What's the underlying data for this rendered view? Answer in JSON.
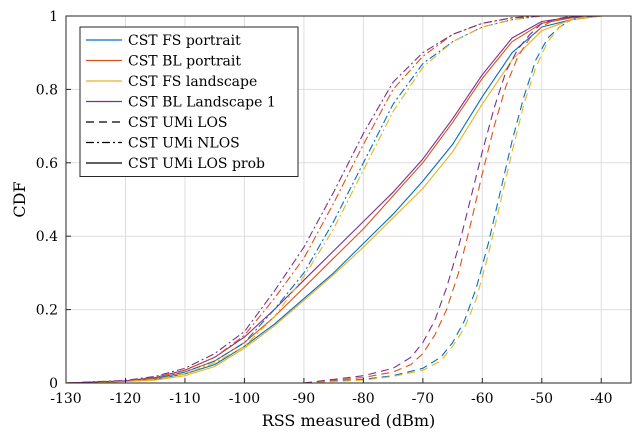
{
  "chart_data": {
    "type": "line",
    "xlabel": "RSS measured (dBm)",
    "ylabel": "CDF",
    "xlim": [
      -130,
      -35
    ],
    "ylim": [
      0,
      1
    ],
    "xticks": [
      -130,
      -120,
      -110,
      -100,
      -90,
      -80,
      -70,
      -60,
      -50,
      -40
    ],
    "yticks": [
      0,
      0.2,
      0.4,
      0.6,
      0.8,
      1
    ],
    "xtick_labels": [
      "-130",
      "-120",
      "-110",
      "-100",
      "-90",
      "-80",
      "-70",
      "-60",
      "-50",
      "-40"
    ],
    "ytick_labels": [
      "0",
      "0.2",
      "0.4",
      "0.6",
      "0.8",
      "1"
    ],
    "grid": true,
    "legend_position": "top-left",
    "legend": [
      {
        "label": "CST FS portrait",
        "color": "#0072bd",
        "dash": "solid"
      },
      {
        "label": "CST BL portrait",
        "color": "#d95319",
        "dash": "solid"
      },
      {
        "label": "CST FS landscape",
        "color": "#edb120",
        "dash": "solid"
      },
      {
        "label": "CST BL Landscape 1",
        "color": "#7e2f8e",
        "dash": "solid"
      },
      {
        "label": "CST UMi LOS",
        "color": "#000000",
        "dash": "dashed"
      },
      {
        "label": "CST UMi NLOS",
        "color": "#000000",
        "dash": "dashdot"
      },
      {
        "label": "CST UMi LOS prob",
        "color": "#000000",
        "dash": "solid"
      }
    ],
    "series": [
      {
        "name": "CST FS portrait",
        "group": "LOS prob",
        "color": "#0072bd",
        "dash": "solid",
        "x": [
          -130,
          -120,
          -115,
          -110,
          -105,
          -100,
          -95,
          -90,
          -85,
          -80,
          -75,
          -70,
          -65,
          -60,
          -55,
          -50,
          -45,
          -40,
          -36
        ],
        "y": [
          0,
          0.005,
          0.01,
          0.025,
          0.05,
          0.1,
          0.16,
          0.23,
          0.3,
          0.38,
          0.46,
          0.55,
          0.65,
          0.78,
          0.9,
          0.97,
          0.99,
          1,
          1
        ]
      },
      {
        "name": "CST BL portrait",
        "group": "LOS prob",
        "color": "#d95319",
        "dash": "solid",
        "x": [
          -130,
          -120,
          -115,
          -110,
          -105,
          -100,
          -95,
          -90,
          -85,
          -80,
          -75,
          -70,
          -65,
          -60,
          -55,
          -50,
          -45,
          -40,
          -36
        ],
        "y": [
          0,
          0.005,
          0.012,
          0.03,
          0.06,
          0.11,
          0.18,
          0.26,
          0.34,
          0.42,
          0.51,
          0.6,
          0.71,
          0.83,
          0.93,
          0.98,
          0.995,
          1,
          1
        ]
      },
      {
        "name": "CST FS landscape",
        "group": "LOS prob",
        "color": "#edb120",
        "dash": "solid",
        "x": [
          -130,
          -120,
          -115,
          -110,
          -105,
          -100,
          -95,
          -90,
          -85,
          -80,
          -75,
          -70,
          -65,
          -60,
          -55,
          -50,
          -45,
          -40,
          -36
        ],
        "y": [
          0,
          0.004,
          0.008,
          0.02,
          0.045,
          0.095,
          0.155,
          0.225,
          0.295,
          0.37,
          0.45,
          0.53,
          0.63,
          0.76,
          0.88,
          0.96,
          0.99,
          1,
          1
        ]
      },
      {
        "name": "CST BL Landscape 1",
        "group": "LOS prob",
        "color": "#7e2f8e",
        "dash": "solid",
        "x": [
          -130,
          -120,
          -115,
          -110,
          -105,
          -100,
          -95,
          -90,
          -85,
          -80,
          -75,
          -70,
          -65,
          -60,
          -55,
          -50,
          -45,
          -40,
          -36
        ],
        "y": [
          0,
          0.006,
          0.015,
          0.035,
          0.07,
          0.125,
          0.2,
          0.28,
          0.36,
          0.44,
          0.52,
          0.61,
          0.72,
          0.84,
          0.94,
          0.985,
          0.997,
          1,
          1
        ]
      },
      {
        "name": "CST FS portrait",
        "group": "LOS",
        "color": "#0072bd",
        "dash": "dashed",
        "x": [
          -90,
          -80,
          -75,
          -70,
          -67,
          -65,
          -63,
          -61,
          -59,
          -57,
          -55,
          -53,
          -51,
          -49,
          -47,
          -45,
          -42,
          -38
        ],
        "y": [
          0,
          0.01,
          0.02,
          0.04,
          0.07,
          0.11,
          0.17,
          0.26,
          0.38,
          0.52,
          0.66,
          0.78,
          0.88,
          0.94,
          0.97,
          0.99,
          1,
          1
        ]
      },
      {
        "name": "CST BL portrait",
        "group": "LOS",
        "color": "#d95319",
        "dash": "dashed",
        "x": [
          -90,
          -80,
          -75,
          -72,
          -70,
          -68,
          -66,
          -64,
          -62,
          -60,
          -58,
          -56,
          -54,
          -52,
          -50,
          -48,
          -45,
          -40
        ],
        "y": [
          0,
          0.015,
          0.03,
          0.05,
          0.08,
          0.13,
          0.2,
          0.3,
          0.43,
          0.57,
          0.7,
          0.81,
          0.89,
          0.94,
          0.97,
          0.99,
          1,
          1
        ]
      },
      {
        "name": "CST FS landscape",
        "group": "LOS",
        "color": "#edb120",
        "dash": "dashed",
        "x": [
          -90,
          -80,
          -75,
          -70,
          -67,
          -65,
          -63,
          -61,
          -59,
          -57,
          -55,
          -53,
          -51,
          -49,
          -47,
          -45,
          -42,
          -38
        ],
        "y": [
          0,
          0.008,
          0.018,
          0.035,
          0.06,
          0.1,
          0.15,
          0.23,
          0.35,
          0.49,
          0.63,
          0.76,
          0.86,
          0.93,
          0.97,
          0.99,
          1,
          1
        ]
      },
      {
        "name": "CST BL Landscape 1",
        "group": "LOS",
        "color": "#7e2f8e",
        "dash": "dashed",
        "x": [
          -90,
          -80,
          -75,
          -72,
          -70,
          -68,
          -66,
          -64,
          -62,
          -60,
          -58,
          -56,
          -54,
          -52,
          -50,
          -48,
          -45,
          -40
        ],
        "y": [
          0,
          0.02,
          0.04,
          0.07,
          0.11,
          0.17,
          0.26,
          0.37,
          0.5,
          0.63,
          0.75,
          0.85,
          0.91,
          0.95,
          0.98,
          0.99,
          1,
          1
        ]
      },
      {
        "name": "CST FS portrait",
        "group": "NLOS",
        "color": "#0072bd",
        "dash": "dashdot",
        "x": [
          -130,
          -120,
          -115,
          -110,
          -105,
          -100,
          -95,
          -90,
          -85,
          -80,
          -75,
          -70,
          -65,
          -60,
          -55,
          -50,
          -45,
          -40
        ],
        "y": [
          0,
          0.005,
          0.012,
          0.03,
          0.06,
          0.11,
          0.2,
          0.3,
          0.44,
          0.6,
          0.76,
          0.87,
          0.93,
          0.97,
          0.99,
          1,
          1,
          1
        ]
      },
      {
        "name": "CST BL portrait",
        "group": "NLOS",
        "color": "#d95319",
        "dash": "dashdot",
        "x": [
          -130,
          -120,
          -115,
          -110,
          -105,
          -100,
          -95,
          -90,
          -85,
          -80,
          -75,
          -70,
          -65,
          -60,
          -55,
          -50,
          -45,
          -40
        ],
        "y": [
          0,
          0.006,
          0.015,
          0.035,
          0.07,
          0.13,
          0.23,
          0.34,
          0.49,
          0.65,
          0.8,
          0.89,
          0.95,
          0.98,
          0.995,
          1,
          1,
          1
        ]
      },
      {
        "name": "CST FS landscape",
        "group": "NLOS",
        "color": "#edb120",
        "dash": "dashdot",
        "x": [
          -130,
          -120,
          -115,
          -110,
          -105,
          -100,
          -95,
          -90,
          -85,
          -80,
          -75,
          -70,
          -65,
          -60,
          -55,
          -50,
          -45,
          -40
        ],
        "y": [
          0,
          0.004,
          0.01,
          0.025,
          0.055,
          0.1,
          0.18,
          0.29,
          0.42,
          0.58,
          0.74,
          0.86,
          0.93,
          0.97,
          0.99,
          1,
          1,
          1
        ]
      },
      {
        "name": "CST BL Landscape 1",
        "group": "NLOS",
        "color": "#7e2f8e",
        "dash": "dashdot",
        "x": [
          -130,
          -120,
          -115,
          -110,
          -105,
          -100,
          -95,
          -90,
          -85,
          -80,
          -75,
          -70,
          -65,
          -60,
          -55,
          -50,
          -45,
          -40
        ],
        "y": [
          0,
          0.007,
          0.018,
          0.04,
          0.08,
          0.14,
          0.25,
          0.37,
          0.52,
          0.68,
          0.82,
          0.9,
          0.95,
          0.98,
          0.995,
          1,
          1,
          1
        ]
      }
    ]
  }
}
